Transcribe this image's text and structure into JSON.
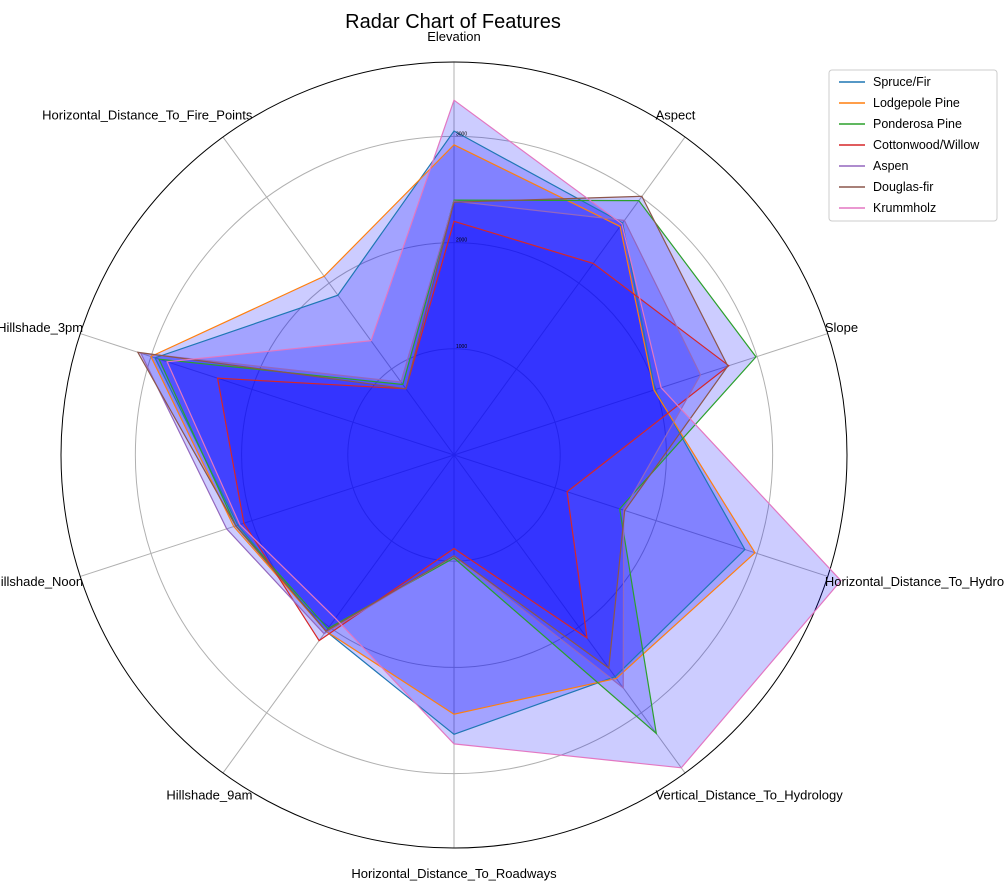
{
  "chart_data": {
    "type": "radar",
    "title": "Radar Chart of Features",
    "axes": [
      "Elevation",
      "Aspect",
      "Slope",
      "Horizontal_Distance_To_Hydrology",
      "Vertical_Distance_To_Hydrology",
      "Horizontal_Distance_To_Roadways",
      "Hillshade_9am",
      "Hillshade_Noon",
      "Hillshade_3pm",
      "Horizontal_Distance_To_Fire_Points"
    ],
    "radial_ticks": [
      {
        "value": 1000,
        "label": "1000"
      },
      {
        "value": 2000,
        "label": "2000"
      },
      {
        "value": 3000,
        "label": "3000"
      }
    ],
    "rmax": 3700,
    "grid": true,
    "legend_position": "top-right",
    "series": [
      {
        "name": "Spruce/Fir",
        "color": "#1f77b4",
        "values": [
          3050,
          2700,
          1990,
          2880,
          2580,
          2630,
          2050,
          2140,
          2960,
          1860
        ]
      },
      {
        "name": "Lodgepole Pine",
        "color": "#ff7f0e",
        "values": [
          2920,
          2660,
          1980,
          2980,
          2600,
          2440,
          2050,
          2180,
          3000,
          2080
        ]
      },
      {
        "name": "Ponderosa Pine",
        "color": "#2ca02c",
        "values": [
          2400,
          2960,
          2990,
          1640,
          3240,
          970,
          2020,
          2160,
          2920,
          820
        ]
      },
      {
        "name": "Cottonwood/Willow",
        "color": "#d62728",
        "values": [
          2200,
          2230,
          2720,
          1120,
          2130,
          880,
          2160,
          2080,
          2340,
          770
        ]
      },
      {
        "name": "Aspen",
        "color": "#9467bd",
        "values": [
          2390,
          2730,
          2440,
          1680,
          2710,
          950,
          2080,
          2250,
          3100,
          850
        ]
      },
      {
        "name": "Douglas-fir",
        "color": "#8c564b",
        "values": [
          2380,
          3010,
          2710,
          1690,
          2480,
          950,
          2050,
          2160,
          3130,
          770
        ]
      },
      {
        "name": "Krummholz",
        "color": "#e377c2",
        "values": [
          3340,
          2690,
          2050,
          3830,
          3640,
          2720,
          1900,
          2120,
          2840,
          1330
        ]
      }
    ]
  }
}
